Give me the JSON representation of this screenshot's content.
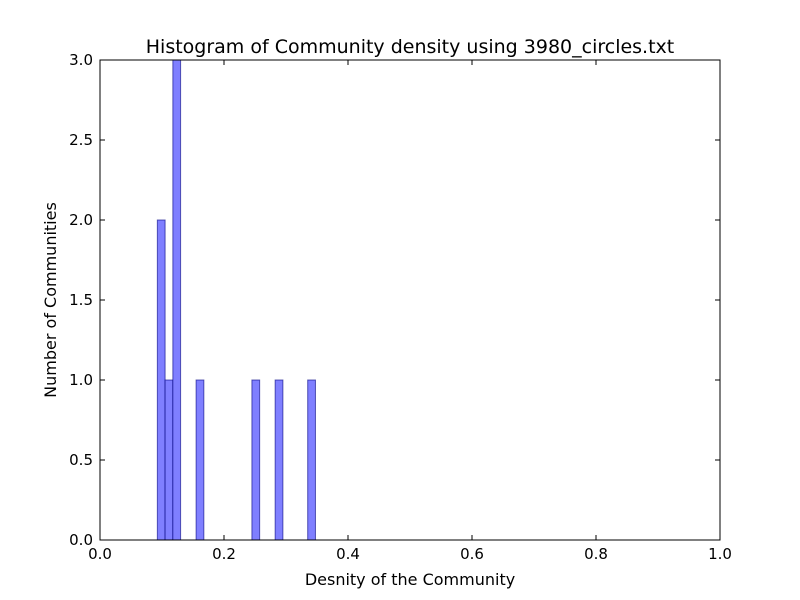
{
  "chart_data": {
    "type": "bar",
    "title": "Histogram of Community density using 3980_circles.txt",
    "xlabel": "Desnity of the Community",
    "ylabel": "Number of Communities",
    "xlim": [
      0.0,
      1.0
    ],
    "ylim": [
      0.0,
      3.0
    ],
    "grid": false,
    "x_ticks": [
      "0.0",
      "0.2",
      "0.4",
      "0.6",
      "0.8",
      "1.0"
    ],
    "y_ticks": [
      "0.0",
      "0.5",
      "1.0",
      "1.5",
      "2.0",
      "2.5",
      "3.0"
    ],
    "bar_color": "#7f7fff",
    "bar_edge_color": "#000080",
    "bins": [
      {
        "x_start": 0.0925,
        "x_end": 0.105,
        "count": 2
      },
      {
        "x_start": 0.105,
        "x_end": 0.1175,
        "count": 1
      },
      {
        "x_start": 0.1175,
        "x_end": 0.13,
        "count": 3
      },
      {
        "x_start": 0.155,
        "x_end": 0.1675,
        "count": 1
      },
      {
        "x_start": 0.245,
        "x_end": 0.2575,
        "count": 1
      },
      {
        "x_start": 0.2825,
        "x_end": 0.295,
        "count": 1
      },
      {
        "x_start": 0.335,
        "x_end": 0.3475,
        "count": 1
      }
    ]
  }
}
